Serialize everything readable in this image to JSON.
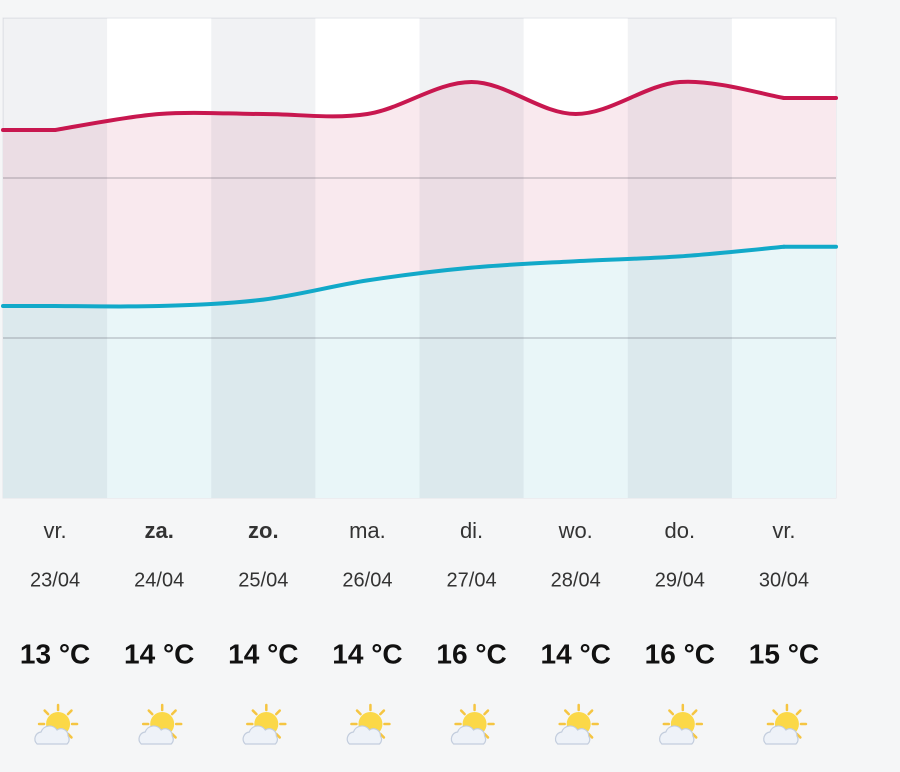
{
  "chart_data": {
    "type": "line",
    "categories": [
      "vr.",
      "za.",
      "zo.",
      "ma.",
      "di.",
      "wo.",
      "do.",
      "vr."
    ],
    "weekend": [
      false,
      true,
      true,
      false,
      false,
      false,
      false,
      false
    ],
    "dates": [
      "23/04",
      "24/04",
      "25/04",
      "26/04",
      "27/04",
      "28/04",
      "29/04",
      "30/04"
    ],
    "series": [
      {
        "color": "#c8174f",
        "fill": "#f9e9ee",
        "values": [
          13,
          14,
          14,
          14,
          16,
          14,
          16,
          15
        ],
        "value_labels": [
          "13 °C",
          "14 °C",
          "14 °C",
          "14 °C",
          "16 °C",
          "14 °C",
          "16 °C",
          "15 °C"
        ]
      },
      {
        "color": "#12a9c9",
        "fill": "#e9f6f8",
        "values": [
          2,
          2,
          2.4,
          3.6,
          4.4,
          4.8,
          5.1,
          5.7
        ]
      }
    ],
    "ylim": [
      -10,
      20
    ],
    "yticks": [
      0,
      10
    ],
    "grid": true
  }
}
